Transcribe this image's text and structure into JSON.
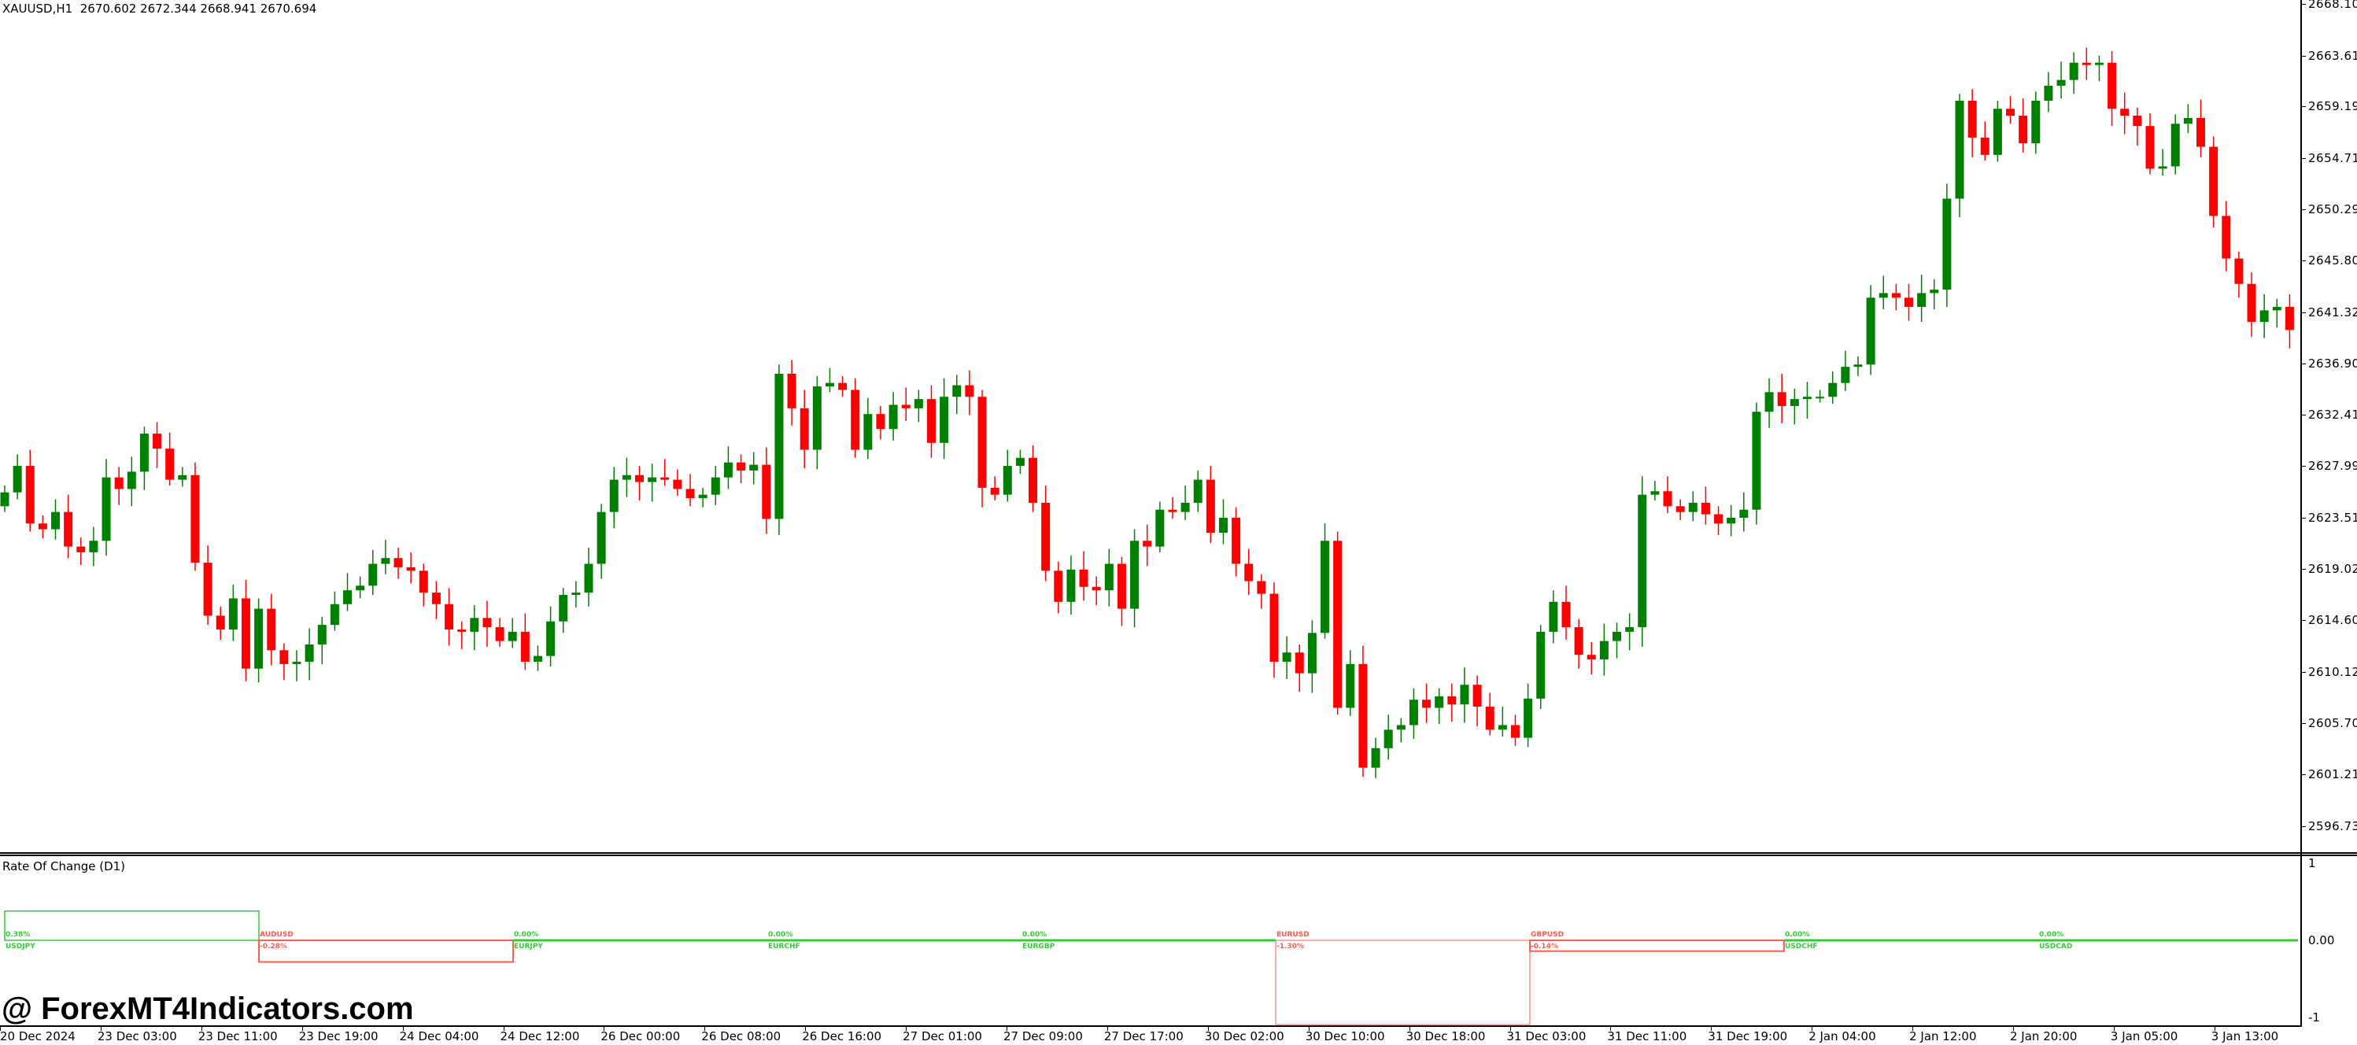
{
  "header": {
    "symbol": "XAUUSD,H1",
    "ohlc": "2670.602 2672.344 2668.941 2670.694"
  },
  "colors": {
    "bull": "#008000",
    "bear": "#ff0000",
    "roc_pos": "#33cc33",
    "roc_neg": "#ff5c4d"
  },
  "price_axis": {
    "labels": [
      "2668.100",
      "2663.615",
      "2659.195",
      "2654.710",
      "2650.290",
      "2645.805",
      "2641.320",
      "2636.900",
      "2632.415",
      "2627.995",
      "2623.510",
      "2619.025",
      "2614.605",
      "2610.120",
      "2605.700",
      "2601.215",
      "2596.730"
    ]
  },
  "time_axis": {
    "labels": [
      "20 Dec 2024",
      "23 Dec 03:00",
      "23 Dec 11:00",
      "23 Dec 19:00",
      "24 Dec 04:00",
      "24 Dec 12:00",
      "26 Dec 00:00",
      "26 Dec 08:00",
      "26 Dec 16:00",
      "27 Dec 01:00",
      "27 Dec 09:00",
      "27 Dec 17:00",
      "30 Dec 02:00",
      "30 Dec 10:00",
      "30 Dec 18:00",
      "31 Dec 03:00",
      "31 Dec 11:00",
      "31 Dec 19:00",
      "2 Jan 04:00",
      "2 Jan 12:00",
      "2 Jan 20:00",
      "3 Jan 05:00",
      "3 Jan 13:00"
    ]
  },
  "indicator": {
    "title": "Rate Of Change (D1)",
    "scale_labels": [
      "1",
      "0.00",
      "-1"
    ],
    "items": [
      {
        "pair": "USDJPY",
        "value_label": "0.38%",
        "value": 0.38
      },
      {
        "pair": "AUDUSD",
        "value_label": "-0.28%",
        "value": -0.28
      },
      {
        "pair": "EURJPY",
        "value_label": "0.00%",
        "value": 0
      },
      {
        "pair": "EURCHF",
        "value_label": "0.00%",
        "value": 0
      },
      {
        "pair": "EURGBP",
        "value_label": "0.00%",
        "value": 0
      },
      {
        "pair": "EURUSD",
        "value_label": "-1.30%",
        "value": -1.3
      },
      {
        "pair": "GBPUSD",
        "value_label": "-0.14%",
        "value": -0.14
      },
      {
        "pair": "USDCHF",
        "value_label": "0.00%",
        "value": 0
      },
      {
        "pair": "USDCAD",
        "value_label": "0.00%",
        "value": 0
      }
    ]
  },
  "watermark": "@ ForexMT4Indicators.com",
  "chart_data": {
    "type": "candlestick",
    "ylim": [
      2596.73,
      2668.1
    ],
    "first_open": 2624.5,
    "close": [
      2625.7,
      2628.0,
      2623.0,
      2622.5,
      2624.0,
      2621.0,
      2620.5,
      2621.5,
      2627.0,
      2626.0,
      2627.5,
      2630.8,
      2629.5,
      2626.8,
      2627.2,
      2619.6,
      2615.0,
      2613.8,
      2616.5,
      2610.4,
      2615.6,
      2612.0,
      2610.8,
      2611.0,
      2612.5,
      2614.2,
      2616.0,
      2617.2,
      2617.6,
      2619.5,
      2620.0,
      2619.2,
      2618.9,
      2617.0,
      2616.0,
      2613.8,
      2613.6,
      2614.8,
      2614.0,
      2612.8,
      2613.6,
      2611.0,
      2611.5,
      2614.5,
      2616.8,
      2617.0,
      2619.5,
      2624.0,
      2626.8,
      2627.2,
      2626.6,
      2627.0,
      2626.8,
      2626.0,
      2625.2,
      2625.5,
      2627.0,
      2628.3,
      2627.6,
      2628.1,
      2623.4,
      2636.0,
      2633.0,
      2629.4,
      2634.9,
      2635.2,
      2634.6,
      2629.4,
      2632.5,
      2631.2,
      2633.3,
      2633.0,
      2633.8,
      2630.0,
      2634.0,
      2635.0,
      2634.0,
      2626.1,
      2625.5,
      2628.0,
      2628.7,
      2624.8,
      2618.9,
      2616.2,
      2619.0,
      2617.5,
      2617.2,
      2619.5,
      2615.6,
      2621.5,
      2621.0,
      2624.2,
      2624.0,
      2624.8,
      2626.8,
      2622.2,
      2623.5,
      2619.5,
      2618.0,
      2616.9,
      2611.0,
      2611.8,
      2610.0,
      2613.5,
      2621.5,
      2607.0,
      2610.8,
      2601.8,
      2603.5,
      2605.1,
      2605.5,
      2607.7,
      2607.0,
      2608.0,
      2607.3,
      2609.0,
      2607.1,
      2605.1,
      2605.5,
      2604.4,
      2607.8,
      2613.6,
      2616.2,
      2614.0,
      2611.6,
      2611.2,
      2612.8,
      2613.6,
      2614.0,
      2625.5,
      2625.8,
      2624.5,
      2624.0,
      2624.8,
      2623.8,
      2623.0,
      2623.5,
      2624.2,
      2632.7,
      2634.4,
      2633.2,
      2633.8,
      2634.0,
      2634.0,
      2635.2,
      2636.6,
      2636.8,
      2642.6,
      2643.0,
      2642.6,
      2641.8,
      2643.0,
      2643.3,
      2651.2,
      2659.7,
      2656.5,
      2655.0,
      2659.0,
      2658.4,
      2656.0,
      2659.7,
      2661.0,
      2661.5,
      2663.0,
      2662.8,
      2663.0,
      2659.0,
      2658.4,
      2657.5,
      2653.8,
      2654.0,
      2657.7,
      2658.2,
      2655.7,
      2649.7,
      2646.0,
      2643.8,
      2640.5,
      2641.5,
      2641.8,
      2639.8
    ]
  }
}
